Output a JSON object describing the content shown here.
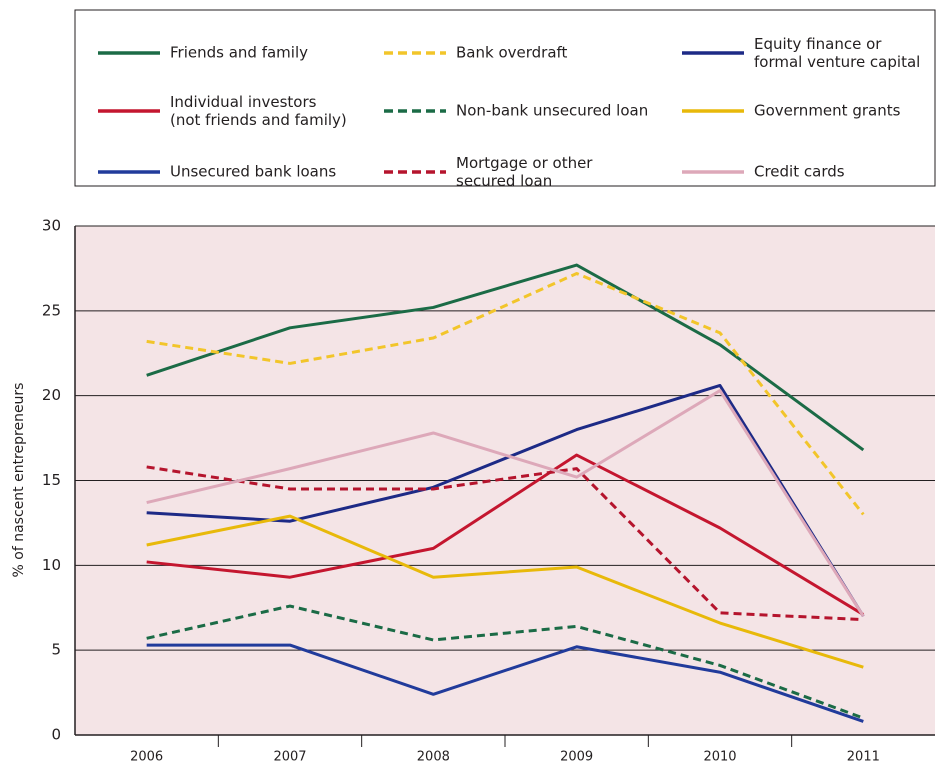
{
  "chart_data": {
    "type": "line",
    "y_label": "% of nascent entrepreneurs",
    "categories": [
      "2006",
      "2007",
      "2008",
      "2009",
      "2010",
      "2011"
    ],
    "ylim": [
      0,
      30
    ],
    "yticks": [
      0,
      5,
      10,
      15,
      20,
      25,
      30
    ],
    "grid": true,
    "background": "#f4e4e6",
    "series": [
      {
        "name": "Friends and family",
        "color": "#1b6b46",
        "dashed": false,
        "values": [
          21.2,
          24.0,
          25.2,
          27.7,
          23.0,
          16.8
        ]
      },
      {
        "name": "Bank overdraft",
        "color": "#f2c52a",
        "dashed": true,
        "values": [
          23.2,
          21.9,
          23.4,
          27.2,
          23.7,
          13.0
        ]
      },
      {
        "name": "Equity finance or\nformal venture capital",
        "color": "#1d2a86",
        "dashed": false,
        "values": [
          13.1,
          12.6,
          14.6,
          18.0,
          20.6,
          7.0
        ]
      },
      {
        "name": "Individual investors\n(not friends and family)",
        "color": "#c4162f",
        "dashed": false,
        "values": [
          10.2,
          9.3,
          11.0,
          16.5,
          12.2,
          7.1
        ]
      },
      {
        "name": "Non-bank unsecured loan",
        "color": "#1b6b46",
        "dashed": true,
        "values": [
          5.7,
          7.6,
          5.6,
          6.4,
          4.1,
          1.0
        ]
      },
      {
        "name": "Government grants",
        "color": "#e8b90a",
        "dashed": false,
        "values": [
          11.2,
          12.9,
          9.3,
          9.9,
          6.6,
          4.0
        ]
      },
      {
        "name": "Unsecured bank loans",
        "color": "#213b9b",
        "dashed": false,
        "values": [
          5.3,
          5.3,
          2.4,
          5.2,
          3.7,
          0.8
        ]
      },
      {
        "name": "Mortgage or other\nsecured loan",
        "color": "#b5142d",
        "dashed": true,
        "values": [
          15.8,
          14.5,
          14.5,
          15.7,
          7.2,
          6.8
        ]
      },
      {
        "name": "Credit cards",
        "color": "#dda8b9",
        "dashed": false,
        "values": [
          13.7,
          15.7,
          17.8,
          15.2,
          20.3,
          7.0
        ]
      }
    ]
  }
}
